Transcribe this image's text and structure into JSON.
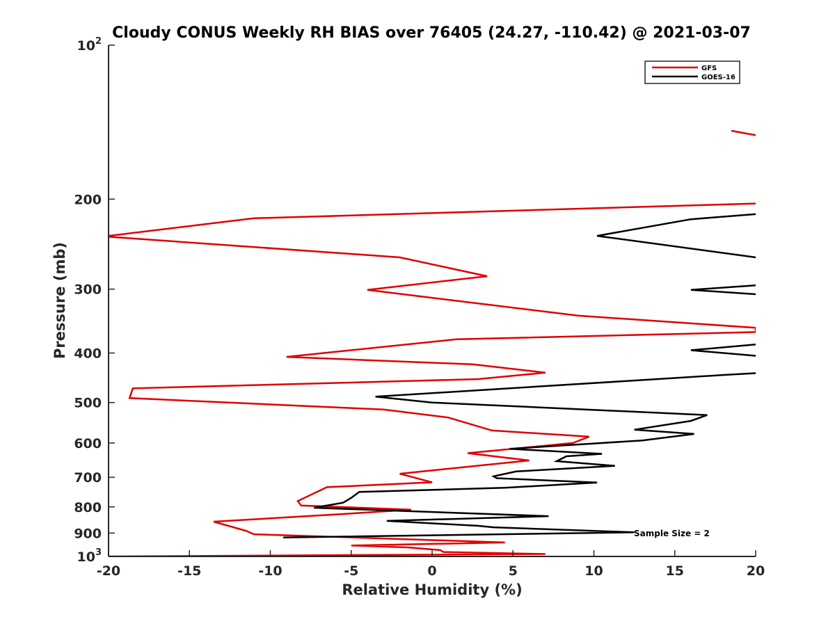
{
  "chart_data": {
    "type": "line",
    "title": "Cloudy CONUS Weekly RH BIAS over 76405 (24.27, -110.42) @ 2021-03-07",
    "xlabel": "Relative Humidity (%)",
    "ylabel": "Pressure (mb)",
    "xlim": [
      -20,
      20
    ],
    "ylim": [
      1000,
      100
    ],
    "yscale": "log",
    "xticks": [
      -20,
      -15,
      -10,
      -5,
      0,
      5,
      10,
      15,
      20
    ],
    "yticks": [
      {
        "value": 100,
        "label": "10",
        "sup": "2"
      },
      {
        "value": 200,
        "label": "200"
      },
      {
        "value": 300,
        "label": "300"
      },
      {
        "value": 400,
        "label": "400"
      },
      {
        "value": 500,
        "label": "500"
      },
      {
        "value": 600,
        "label": "600"
      },
      {
        "value": 700,
        "label": "700"
      },
      {
        "value": 800,
        "label": "800"
      },
      {
        "value": 900,
        "label": "900"
      },
      {
        "value": 1000,
        "label": "10",
        "sup": "3"
      }
    ],
    "grid": false,
    "legend_position": "top-right",
    "annotation": "Sample Size = 2",
    "series": [
      {
        "name": "GFS",
        "color": "#e00000",
        "segments": [
          [
            [
              18.5,
              147
            ],
            [
              20,
              150
            ]
          ],
          [
            [
              20,
              204
            ],
            [
              -11,
              218
            ],
            [
              -20,
              236
            ],
            [
              -20,
              237
            ],
            [
              -2,
              260
            ],
            [
              3.4,
              283
            ],
            [
              -4,
              301
            ],
            [
              9,
              338
            ],
            [
              20,
              357
            ],
            [
              20,
              364
            ],
            [
              1.5,
              376
            ],
            [
              -9,
              407
            ],
            [
              2.5,
              421
            ],
            [
              7,
              437
            ],
            [
              2.8,
              450
            ],
            [
              -18.5,
              469
            ],
            [
              -18.7,
              490
            ],
            [
              -3,
              516
            ],
            [
              1,
              535
            ],
            [
              3.7,
              567
            ],
            [
              9.7,
              583
            ],
            [
              8.7,
              600
            ],
            [
              2.2,
              628
            ],
            [
              6,
              649
            ],
            [
              -2,
              689
            ],
            [
              0,
              716
            ],
            [
              -6.5,
              732
            ],
            [
              -8.3,
              779
            ],
            [
              -8.1,
              795
            ],
            [
              -1.3,
              810
            ],
            [
              -5.5,
              826
            ],
            [
              -13.5,
              855
            ],
            [
              -11.5,
              891
            ],
            [
              -11,
              905
            ],
            [
              4.5,
              939
            ],
            [
              -5,
              952
            ],
            [
              -1.5,
              960
            ],
            [
              0.5,
              972
            ],
            [
              0.7,
              980
            ],
            [
              7,
              989
            ],
            [
              -20,
              1000
            ]
          ]
        ]
      },
      {
        "name": "GOES-16",
        "color": "#000000",
        "segments": [
          [
            [
              20,
              214
            ],
            [
              16,
              219
            ],
            [
              10.2,
              236
            ],
            [
              20,
              260
            ]
          ],
          [
            [
              20,
              295
            ],
            [
              16,
              301
            ],
            [
              20,
              307
            ]
          ],
          [
            [
              20,
              385
            ],
            [
              16,
              395
            ],
            [
              20,
              405
            ]
          ],
          [
            [
              20,
              438
            ],
            [
              17.8,
              442
            ],
            [
              -3.5,
              487
            ],
            [
              0,
              500
            ],
            [
              17,
              529
            ],
            [
              16,
              543
            ],
            [
              12.5,
              565
            ],
            [
              16.2,
              576
            ],
            [
              13,
              593
            ],
            [
              4.8,
              616
            ],
            [
              10.5,
              630
            ],
            [
              8.3,
              637
            ],
            [
              7.7,
              651
            ],
            [
              11.3,
              665
            ],
            [
              5.2,
              682
            ],
            [
              3.8,
              697
            ],
            [
              4,
              703
            ],
            [
              10.2,
              717
            ],
            [
              4.5,
              734
            ],
            [
              -4.5,
              748
            ],
            [
              -5,
              768
            ],
            [
              -5.5,
              785
            ],
            [
              -7.3,
              803
            ],
            [
              7.2,
              834
            ],
            [
              -2.8,
              852
            ],
            [
              2.8,
              871
            ],
            [
              3.8,
              877
            ],
            [
              12.5,
              897
            ],
            [
              -9.2,
              918
            ]
          ]
        ]
      }
    ]
  }
}
